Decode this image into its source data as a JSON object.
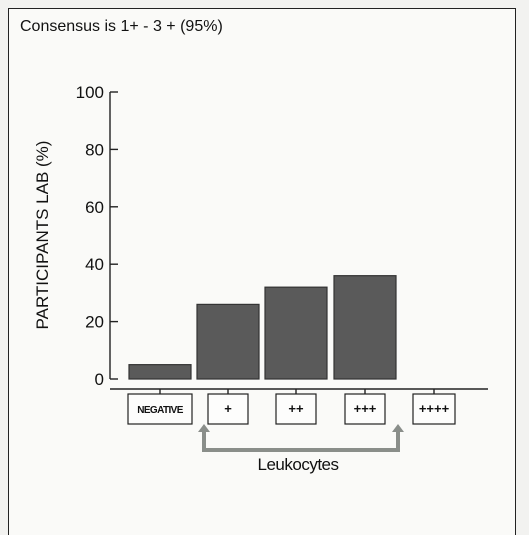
{
  "header": {
    "title": "Consensus is 1+ - 3 + (95%)"
  },
  "chart_data": {
    "type": "bar",
    "title": "Consensus is 1+ - 3 + (95%)",
    "ylabel": "PARTICIPANTS LAB (%)",
    "xlabel": "Leukocytes",
    "ylim": [
      0,
      100
    ],
    "yticks": [
      "0",
      "20",
      "40",
      "60",
      "80",
      "100"
    ],
    "categories": [
      "NEGATIVE",
      "+",
      "++",
      "+++",
      "++++"
    ],
    "values": [
      5,
      26,
      32,
      36,
      0
    ],
    "consensus_range": [
      "+",
      "+++"
    ],
    "grid": false,
    "colors": {
      "bar": "#5a5a5a",
      "bracket": "#8a8e8a"
    }
  }
}
